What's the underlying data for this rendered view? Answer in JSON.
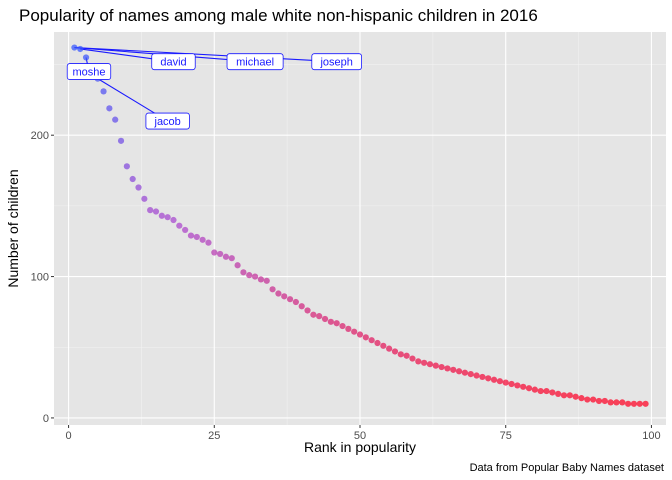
{
  "chart_data": {
    "type": "scatter",
    "title": "Popularity of names among male white non-hispanic children in 2016",
    "xlabel": "Rank in popularity",
    "ylabel": "Number of children",
    "caption": "Data from Popular Baby Names dataset",
    "xlim": [
      -2.5,
      102.5
    ],
    "ylim": [
      -5,
      273
    ],
    "x_ticks": [
      0,
      25,
      50,
      75,
      100
    ],
    "y_ticks": [
      0,
      100,
      200
    ],
    "grid": true,
    "colors": {
      "panel": "#e5e5e5",
      "grid_major": "#ffffff",
      "label": "#1a1aff",
      "high": "#3355ff",
      "mid": "#aa44cc",
      "low": "#ff0022"
    },
    "x": [
      1,
      2,
      3,
      4,
      5,
      6,
      7,
      8,
      9,
      10,
      11,
      12,
      13,
      14,
      15,
      16,
      17,
      18,
      19,
      20,
      21,
      22,
      23,
      24,
      25,
      26,
      27,
      28,
      29,
      30,
      31,
      32,
      33,
      34,
      35,
      36,
      37,
      38,
      39,
      40,
      41,
      42,
      43,
      44,
      45,
      46,
      47,
      48,
      49,
      50,
      51,
      52,
      53,
      54,
      55,
      56,
      57,
      58,
      59,
      60,
      61,
      62,
      63,
      64,
      65,
      66,
      67,
      68,
      69,
      70,
      71,
      72,
      73,
      74,
      75,
      76,
      77,
      78,
      79,
      80,
      81,
      82,
      83,
      84,
      85,
      86,
      87,
      88,
      89,
      90,
      91,
      92,
      93,
      94,
      95,
      96,
      97,
      98,
      99
    ],
    "y": [
      262,
      261,
      255,
      245,
      240,
      231,
      219,
      211,
      196,
      178,
      169,
      163,
      155,
      147,
      146,
      143,
      142,
      140,
      136,
      133,
      129,
      128,
      126,
      124,
      117,
      116,
      114,
      113,
      108,
      103,
      101,
      100,
      98,
      97,
      91,
      88,
      86,
      84,
      82,
      79,
      76,
      73,
      72,
      70,
      68,
      67,
      65,
      63,
      61,
      59,
      57,
      55,
      53,
      51,
      49,
      47,
      45,
      44,
      42,
      40,
      39,
      38,
      37,
      36,
      35,
      34,
      33,
      32,
      31,
      30,
      29,
      28,
      27,
      26,
      25,
      24,
      23,
      22,
      21,
      20,
      19,
      19,
      18,
      17,
      16,
      16,
      15,
      14,
      13,
      13,
      12,
      12,
      11,
      11,
      11,
      10,
      10,
      10,
      10
    ],
    "labels": [
      {
        "text": "david",
        "point_x": 2,
        "point_y": 261,
        "label_x": 18,
        "label_y": 252
      },
      {
        "text": "michael",
        "point_x": 1,
        "point_y": 262,
        "label_x": 32,
        "label_y": 252
      },
      {
        "text": "joseph",
        "point_x": 1,
        "point_y": 262,
        "label_x": 46,
        "label_y": 252
      },
      {
        "text": "moshe",
        "point_x": 3,
        "point_y": 255,
        "label_x": 3.5,
        "label_y": 245
      },
      {
        "text": "jacob",
        "point_x": 5,
        "point_y": 240,
        "label_x": 17,
        "label_y": 210
      }
    ]
  }
}
